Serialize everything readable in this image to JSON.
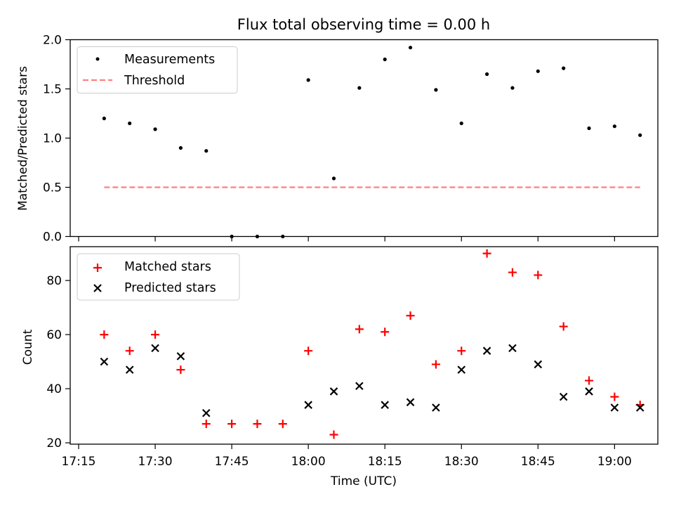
{
  "chart_data": [
    {
      "type": "scatter",
      "title": "Flux total observing time = 0.00 h",
      "xlabel": "",
      "ylabel": "Matched/Predicted stars",
      "ylim": [
        0,
        2
      ],
      "yticks": [
        "0.0",
        "0.5",
        "1.0",
        "1.5",
        "2.0"
      ],
      "legend_position": "top-left",
      "colors": {
        "measurements": "#000000",
        "threshold": "#ff7f7f"
      },
      "series": [
        {
          "name": "Measurements",
          "marker": "dot",
          "x": [
            "17:20",
            "17:25",
            "17:30",
            "17:35",
            "17:40",
            "17:45",
            "17:50",
            "17:55",
            "18:00",
            "18:05",
            "18:10",
            "18:15",
            "18:20",
            "18:25",
            "18:30",
            "18:35",
            "18:40",
            "18:45",
            "18:50",
            "18:55",
            "19:00",
            "19:05"
          ],
          "y": [
            1.2,
            1.15,
            1.09,
            0.9,
            0.87,
            0.0,
            0.0,
            0.0,
            1.59,
            0.59,
            1.51,
            1.8,
            1.92,
            1.49,
            1.15,
            1.65,
            1.51,
            1.68,
            1.71,
            1.1,
            1.12,
            1.03
          ]
        },
        {
          "name": "Threshold",
          "style": "dashed-line",
          "x": [
            "17:20",
            "19:05"
          ],
          "y": [
            0.5,
            0.5
          ]
        }
      ]
    },
    {
      "type": "scatter",
      "title": "",
      "xlabel": "Time (UTC)",
      "ylabel": "Count",
      "ylim": [
        19.5,
        92.5
      ],
      "yticks": [
        "20",
        "40",
        "60",
        "80"
      ],
      "xticks": [
        "17:15",
        "17:30",
        "17:45",
        "18:00",
        "18:15",
        "18:30",
        "18:45",
        "19:00"
      ],
      "legend_position": "top-left",
      "colors": {
        "matched": "#ff0000",
        "predicted": "#000000"
      },
      "series": [
        {
          "name": "Matched stars",
          "marker": "plus",
          "x": [
            "17:20",
            "17:25",
            "17:30",
            "17:35",
            "17:40",
            "17:45",
            "17:50",
            "17:55",
            "18:00",
            "18:05",
            "18:10",
            "18:15",
            "18:20",
            "18:25",
            "18:30",
            "18:35",
            "18:40",
            "18:45",
            "18:50",
            "18:55",
            "19:00",
            "19:05"
          ],
          "y": [
            60,
            54,
            60,
            47,
            27,
            27,
            27,
            27,
            54,
            23,
            62,
            61,
            67,
            49,
            54,
            90,
            83,
            82,
            63,
            43,
            37,
            34
          ]
        },
        {
          "name": "Predicted stars",
          "marker": "x",
          "x": [
            "17:20",
            "17:25",
            "17:30",
            "17:35",
            "17:40",
            "18:00",
            "18:05",
            "18:10",
            "18:15",
            "18:20",
            "18:25",
            "18:30",
            "18:35",
            "18:40",
            "18:45",
            "18:50",
            "18:55",
            "19:00",
            "19:05"
          ],
          "y": [
            50,
            47,
            55,
            52,
            31,
            34,
            39,
            41,
            34,
            35,
            33,
            47,
            54,
            55,
            49,
            37,
            39,
            33,
            33
          ]
        }
      ]
    }
  ]
}
